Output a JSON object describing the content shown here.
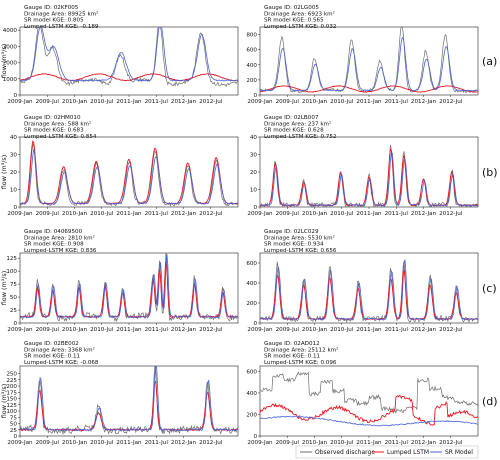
{
  "figure": {
    "colors": {
      "observed": "#6e6e6e",
      "lstm": "#e8161f",
      "sr": "#4a62d8"
    },
    "date_ticks": [
      "2009-Jan",
      "2009-Jul",
      "2010-Jan",
      "2010-Jul",
      "2011-Jan",
      "2011-Jul",
      "2012-Jan",
      "2012-Jul"
    ],
    "legend": {
      "observed": "Observed discharge",
      "lstm": "Lumped LSTM",
      "sr": "SR Model",
      "placement": "bottom-center"
    }
  },
  "chart_data": [
    {
      "type": "line",
      "panel": "left-1",
      "info": [
        "Gauge ID: 02KF005",
        "Drainage Area: 89925 km²",
        "SR model KGE: 0.805",
        "Lumped-LSTM KGE: -0.189"
      ],
      "ylabel": "flow (m³/s)",
      "ylim": [
        0,
        4200
      ],
      "yticks": [
        "0",
        "1000",
        "2000",
        "3000",
        "4000"
      ],
      "base": [
        800,
        900,
        900
      ],
      "lstm_base": 1100,
      "lstm_amp": 200,
      "peaks": [
        [
          0.09,
          3450,
          0.025
        ],
        [
          0.15,
          2200,
          0.03
        ],
        [
          0.46,
          1800,
          0.03
        ],
        [
          0.64,
          3750,
          0.02
        ],
        [
          0.83,
          3000,
          0.025
        ]
      ],
      "obs_noise": 120,
      "sr_scale": 0.95
    },
    {
      "type": "line",
      "panel": "right-1",
      "letter": "(a)",
      "info": [
        "Gauge ID: 02LG005",
        "Drainage Area: 6923 km²",
        "SR model KGE: 0.565",
        "Lumped-LSTM KGE: 0.032"
      ],
      "ylim": [
        0,
        900
      ],
      "yticks": [
        "0",
        "200",
        "400",
        "600",
        "800"
      ],
      "base": [
        60,
        60,
        60
      ],
      "lstm_base": 80,
      "lstm_amp": 40,
      "peaks": [
        [
          0.1,
          700,
          0.02
        ],
        [
          0.25,
          430,
          0.02
        ],
        [
          0.42,
          690,
          0.02
        ],
        [
          0.55,
          380,
          0.02
        ],
        [
          0.65,
          880,
          0.018
        ],
        [
          0.76,
          520,
          0.02
        ],
        [
          0.85,
          730,
          0.02
        ]
      ],
      "obs_noise": 20,
      "sr_scale": 0.8
    },
    {
      "type": "line",
      "panel": "left-2",
      "info": [
        "Gauge ID: 02HM010",
        "Drainage Area: 588 km²",
        "SR model KGE: 0.683",
        "Lumped-LSTM KGE: 0.854"
      ],
      "ylabel": "flow (m³/s)",
      "ylim": [
        0,
        40
      ],
      "yticks": [
        "0",
        "10",
        "20",
        "30",
        "40"
      ],
      "base": [
        2,
        2,
        2
      ],
      "lstm_base": 2,
      "lstm_amp": 0,
      "peaks": [
        [
          0.06,
          34,
          0.015
        ],
        [
          0.2,
          20,
          0.02
        ],
        [
          0.35,
          23,
          0.02
        ],
        [
          0.5,
          24,
          0.02
        ],
        [
          0.62,
          30,
          0.02
        ],
        [
          0.77,
          22,
          0.02
        ],
        [
          0.9,
          25,
          0.02
        ]
      ],
      "obs_noise": 1,
      "sr_scale": 0.9,
      "lstm_follow": 1.05
    },
    {
      "type": "line",
      "panel": "right-2",
      "letter": "(b)",
      "info": [
        "Gauge ID: 02LB007",
        "Drainage Area: 237 km²",
        "SR model KGE: 0.628",
        "Lumped-LSTM KGE: 0.752"
      ],
      "ylim": [
        0,
        40
      ],
      "yticks": [
        "0",
        "10",
        "20",
        "30",
        "40"
      ],
      "base": [
        1,
        1,
        1
      ],
      "lstm_base": 1,
      "lstm_amp": 0,
      "peaks": [
        [
          0.07,
          25,
          0.012
        ],
        [
          0.2,
          14,
          0.012
        ],
        [
          0.37,
          20,
          0.012
        ],
        [
          0.5,
          17,
          0.012
        ],
        [
          0.6,
          34,
          0.012
        ],
        [
          0.66,
          30,
          0.012
        ],
        [
          0.75,
          16,
          0.012
        ],
        [
          0.88,
          20,
          0.012
        ]
      ],
      "obs_noise": 1.5,
      "sr_scale": 0.9,
      "lstm_follow": 0.95
    },
    {
      "type": "line",
      "panel": "left-3",
      "info": [
        "Gauge ID: 04069500",
        "Drainage Area: 2810 km²",
        "SR model KGE: 0.908",
        "Lumped-LSTM KGE: 0.836"
      ],
      "ylabel": "flow (m³/s)",
      "ylim": [
        0,
        135
      ],
      "yticks": [
        "0",
        "25",
        "50",
        "75",
        "100",
        "125"
      ],
      "base": [
        12,
        12,
        12
      ],
      "lstm_base": 12,
      "lstm_amp": 0,
      "peaks": [
        [
          0.08,
          65,
          0.01
        ],
        [
          0.15,
          60,
          0.01
        ],
        [
          0.27,
          68,
          0.01
        ],
        [
          0.39,
          70,
          0.01
        ],
        [
          0.47,
          55,
          0.01
        ],
        [
          0.61,
          85,
          0.01
        ],
        [
          0.64,
          110,
          0.008
        ],
        [
          0.67,
          125,
          0.008
        ],
        [
          0.8,
          75,
          0.01
        ],
        [
          0.93,
          55,
          0.01
        ]
      ],
      "obs_noise": 6,
      "sr_scale": 0.97,
      "lstm_follow": 0.85
    },
    {
      "type": "line",
      "panel": "right-3",
      "letter": "(c)",
      "info": [
        "Gauge ID: 02LC029",
        "Drainage Area: 5530 km²",
        "SR model KGE: 0.934",
        "Lumped-LSTM KGE: 0.656"
      ],
      "ylim": [
        0,
        700
      ],
      "yticks": [
        "0",
        "200",
        "400",
        "600"
      ],
      "base": [
        40,
        40,
        40
      ],
      "lstm_base": 40,
      "lstm_amp": 0,
      "peaks": [
        [
          0.08,
          550,
          0.012
        ],
        [
          0.2,
          420,
          0.012
        ],
        [
          0.32,
          520,
          0.012
        ],
        [
          0.45,
          380,
          0.012
        ],
        [
          0.6,
          500,
          0.012
        ],
        [
          0.66,
          620,
          0.01
        ],
        [
          0.78,
          430,
          0.012
        ],
        [
          0.9,
          330,
          0.012
        ]
      ],
      "obs_noise": 25,
      "sr_scale": 0.96,
      "lstm_follow": 0.8
    },
    {
      "type": "line",
      "panel": "left-4",
      "info": [
        "Gauge ID: 02BE002",
        "Drainage Area: 3368 km²",
        "SR model KGE: 0.11",
        "Lumped-LSTM KGE: -0.068"
      ],
      "ylabel": "flow (m³/s)",
      "ylim": [
        0,
        280
      ],
      "yticks": [
        "0",
        "25",
        "50",
        "75",
        "100",
        "125",
        "150",
        "175",
        "200",
        "225",
        "250"
      ],
      "base": [
        25,
        25,
        25
      ],
      "lstm_base": 25,
      "lstm_amp": 0,
      "peaks": [
        [
          0.09,
          210,
          0.012
        ],
        [
          0.36,
          90,
          0.015
        ],
        [
          0.62,
          265,
          0.01
        ],
        [
          0.86,
          200,
          0.012
        ]
      ],
      "obs_noise": 14,
      "sr_scale": 1.0,
      "lstm_follow": 0.75
    },
    {
      "type": "line",
      "panel": "right-4",
      "letter": "(d)",
      "info": [
        "Gauge ID: 02AD012",
        "Drainage Area: 25112 km²",
        "SR model KGE: 0.11",
        "Lumped-LSTM KGE: 0.096"
      ],
      "ylim": [
        0,
        650
      ],
      "yticks": [
        "0",
        "200",
        "400",
        "600"
      ],
      "special": "regulated"
    }
  ]
}
